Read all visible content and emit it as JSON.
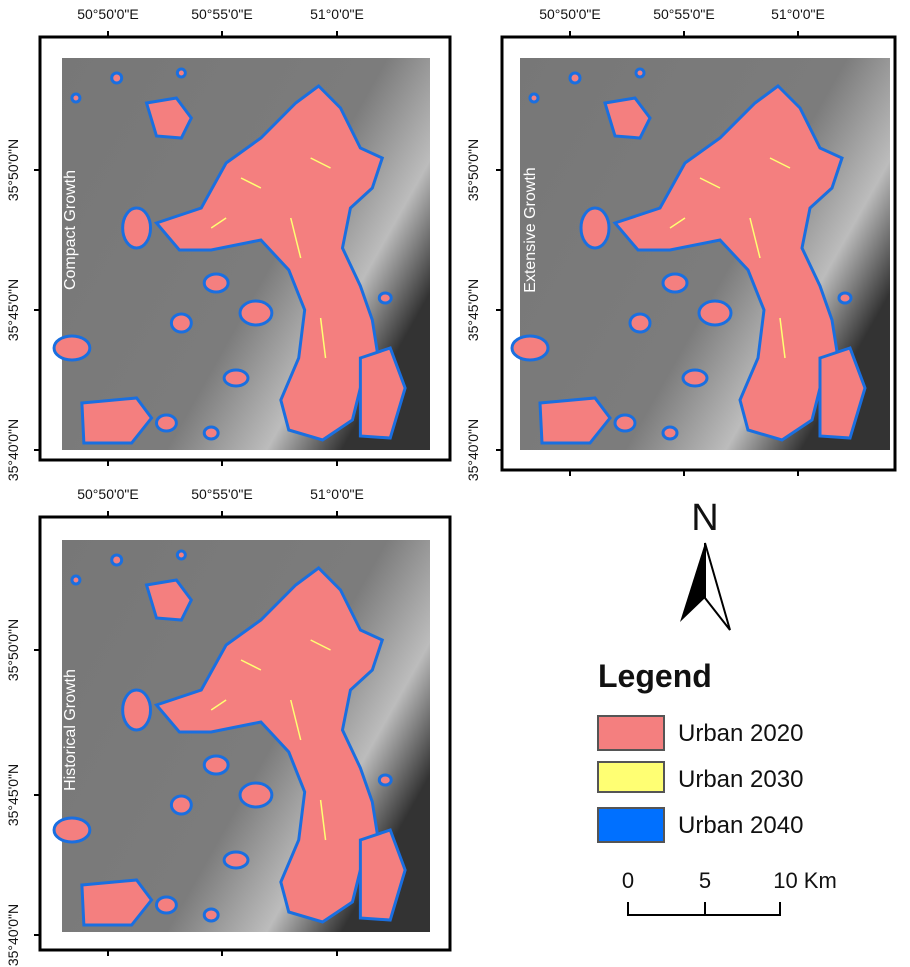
{
  "panels": [
    {
      "label": "Compact Growth",
      "x_labels": [
        "50°50'0\"E",
        "50°55'0\"E",
        "51°0'0\"E"
      ],
      "y_labels": [
        "35°50'0\"N",
        "35°45'0\"N",
        "35°40'0\"N"
      ]
    },
    {
      "label": "Extensive Growth",
      "x_labels": [
        "50°50'0\"E",
        "50°55'0\"E",
        "51°0'0\"E"
      ],
      "y_labels": [
        "35°50'0\"N",
        "35°45'0\"N",
        "35°40'0\"N"
      ]
    },
    {
      "label": "Historical Growth",
      "x_labels": [
        "50°50'0\"E",
        "50°55'0\"E",
        "51°0'0\"E"
      ],
      "y_labels": [
        "35°50'0\"N",
        "35°45'0\"N",
        "35°40'0\"N"
      ]
    }
  ],
  "north": "N",
  "legend": {
    "title": "Legend",
    "items": [
      {
        "label": "Urban 2020",
        "color": "#f47f7f"
      },
      {
        "label": "Urban 2030",
        "color": "#ffff73"
      },
      {
        "label": "Urban 2040",
        "color": "#0070ff"
      }
    ]
  },
  "scale_bar": {
    "ticks": [
      "0",
      "5",
      "10 Km"
    ]
  }
}
